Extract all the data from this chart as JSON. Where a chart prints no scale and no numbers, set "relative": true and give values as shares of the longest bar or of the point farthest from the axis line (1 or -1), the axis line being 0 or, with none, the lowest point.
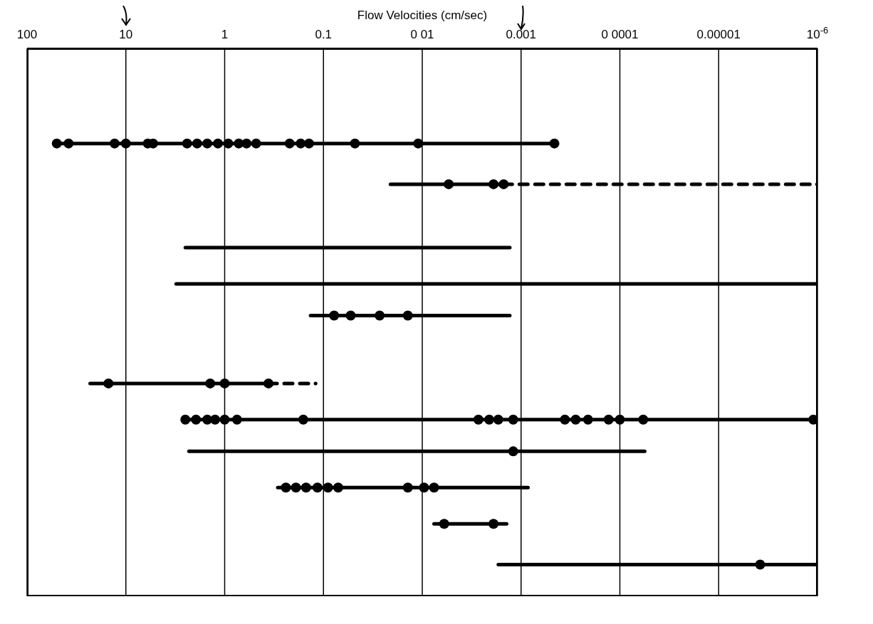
{
  "chart_data": {
    "type": "line",
    "relative": true,
    "xlabel": "Flow Velocities (cm/sec)",
    "log": "x",
    "grid": "x",
    "xlim": [
      100,
      1e-06
    ],
    "xticks": [
      100,
      10,
      1,
      0.1,
      {
        "value": 0.01,
        "label": "0 01"
      },
      0.001,
      {
        "value": 0.0001,
        "label": "0 0001"
      },
      {
        "value": 1e-05,
        "label": "0.00001"
      },
      {
        "value": 1e-06,
        "label": "10$^{-6}$"
      }
    ],
    "series": [
      {
        "color": "#000000",
        "line_style": "solid",
        "x": [
          50,
          0.00046
        ],
        "values": [
          1,
          1
        ]
      },
      {
        "type": "line",
        "color": "#000000",
        "line_style": "solid",
        "x": [
          0.021,
          0.0015
        ],
        "values": [
          0.91,
          0.91
        ]
      },
      {
        "type": "line",
        "color": "#000000",
        "line_style": "dashed",
        "x": [
          0.0015,
          1e-06
        ],
        "values": [
          0.91,
          0.91
        ]
      },
      {
        "type": "line",
        "color": "#000000",
        "line_style": "solid",
        "x": [
          2.5,
          0.0013
        ],
        "values": [
          0.77,
          0.77
        ]
      },
      {
        "type": "line",
        "color": "#000000",
        "line_style": "solid",
        "x": [
          3.1,
          1e-06
        ],
        "values": [
          0.69,
          0.69
        ]
      },
      {
        "type": "line",
        "color": "#000000",
        "line_style": "solid",
        "x": [
          0.135,
          0.0013
        ],
        "values": [
          0.62,
          0.62
        ]
      },
      {
        "type": "line",
        "color": "#000000",
        "line_style": "solid",
        "x": [
          23,
          0.36
        ],
        "values": [
          0.47,
          0.47
        ]
      },
      {
        "type": "line",
        "color": "#000000",
        "line_style": "dashed",
        "x": [
          0.36,
          0.12
        ],
        "values": [
          0.47,
          0.47
        ]
      },
      {
        "type": "line",
        "color": "#000000",
        "line_style": "solid",
        "x": [
          2.5,
          1e-06
        ],
        "values": [
          0.39,
          0.39
        ]
      },
      {
        "type": "line",
        "color": "#000000",
        "line_style": "solid",
        "x": [
          2.3,
          5.6e-05
        ],
        "values": [
          0.32,
          0.32
        ]
      },
      {
        "type": "line",
        "color": "#000000",
        "line_style": "solid",
        "x": [
          0.29,
          0.00085
        ],
        "values": [
          0.24,
          0.24
        ]
      },
      {
        "type": "line",
        "color": "#000000",
        "line_style": "solid",
        "x": [
          0.0076,
          0.0014
        ],
        "values": [
          0.16,
          0.16
        ]
      },
      {
        "type": "line",
        "color": "#000000",
        "line_style": "solid",
        "x": [
          0.0017,
          1e-06
        ],
        "values": [
          0.07,
          0.07
        ]
      },
      {
        "type": "scatter",
        "color": "#000000",
        "marker": "circle",
        "x": [
          50,
          38,
          13,
          10,
          6,
          5.3,
          2.4,
          1.9,
          1.5,
          1.17,
          0.92,
          0.72,
          0.6,
          0.48,
          0.22,
          0.17,
          0.14,
          0.048,
          0.011,
          0.00046,
          0.0054,
          0.0019,
          0.0015,
          0.078,
          0.053,
          0.027,
          0.014,
          15,
          1.4,
          1,
          0.36,
          2.5,
          1.95,
          1.5,
          1.25,
          1,
          0.75,
          0.16,
          0.0027,
          0.0021,
          0.0017,
          0.0012,
          0.00036,
          0.00028,
          0.00021,
          0.00013,
          0.0001,
          5.8e-05,
          1.1e-06,
          0.0012,
          0.24,
          0.19,
          0.15,
          0.115,
          0.09,
          0.071,
          0.014,
          0.0096,
          0.0076,
          0.006,
          0.0019,
          3.8e-06
        ],
        "values": [
          1,
          1,
          1,
          1,
          1,
          1,
          1,
          1,
          1,
          1,
          1,
          1,
          1,
          1,
          1,
          1,
          1,
          1,
          1,
          1,
          0.91,
          0.91,
          0.91,
          0.62,
          0.62,
          0.62,
          0.62,
          0.47,
          0.47,
          0.47,
          0.47,
          0.39,
          0.39,
          0.39,
          0.39,
          0.39,
          0.39,
          0.39,
          0.39,
          0.39,
          0.39,
          0.39,
          0.39,
          0.39,
          0.39,
          0.39,
          0.39,
          0.39,
          0.39,
          0.32,
          0.24,
          0.24,
          0.24,
          0.24,
          0.24,
          0.24,
          0.24,
          0.24,
          0.24,
          0.16,
          0.16,
          0.07
        ]
      }
    ]
  }
}
